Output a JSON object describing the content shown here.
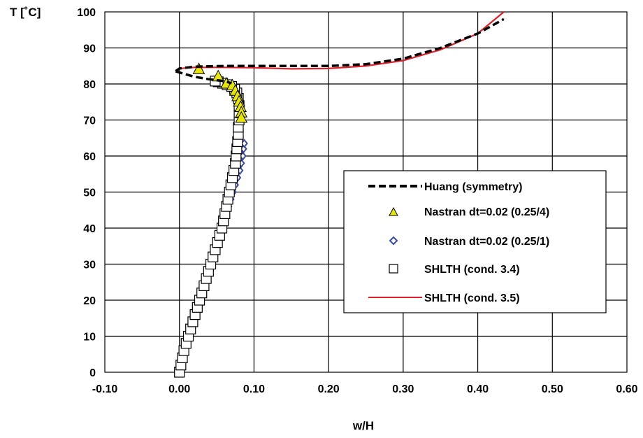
{
  "chart_data": {
    "type": "line",
    "title": "",
    "xlabel": "w/H",
    "ylabel": "T [˚C]",
    "xlim": [
      -0.1,
      0.6
    ],
    "ylim": [
      0,
      100
    ],
    "x_ticks": [
      "-0.10",
      "0.00",
      "0.10",
      "0.20",
      "0.30",
      "0.40",
      "0.50",
      "0.60"
    ],
    "y_ticks": [
      "0",
      "10",
      "20",
      "30",
      "40",
      "50",
      "60",
      "70",
      "80",
      "90",
      "100"
    ],
    "grid": true,
    "legend_position": "right-middle",
    "series": [
      {
        "name": "Huang (symmetry)",
        "style": "dashed-line",
        "color": "#000000",
        "segments": [
          [
            [
              -0.005,
              83.5
            ],
            [
              0.0,
              84.3
            ],
            [
              0.02,
              84.8
            ],
            [
              0.06,
              85.0
            ],
            [
              0.1,
              85.0
            ],
            [
              0.15,
              85.0
            ],
            [
              0.2,
              85.0
            ],
            [
              0.25,
              85.5
            ],
            [
              0.3,
              87.0
            ],
            [
              0.35,
              90.0
            ],
            [
              0.4,
              94.0
            ],
            [
              0.435,
              98.0
            ]
          ],
          [
            [
              -0.005,
              83.5
            ],
            [
              0.02,
              82.0
            ],
            [
              0.04,
              81.3
            ],
            [
              0.06,
              80.8
            ],
            [
              0.07,
              80.2
            ]
          ]
        ]
      },
      {
        "name": "Nastran dt=0.02 (0.25/4)",
        "style": "triangle-markers",
        "color": "#e6e600",
        "points": [
          [
            0.026,
            84.0
          ],
          [
            0.052,
            82.0
          ],
          [
            0.063,
            80.0
          ],
          [
            0.071,
            79.5
          ],
          [
            0.075,
            78.0
          ],
          [
            0.078,
            76.5
          ],
          [
            0.08,
            75.0
          ],
          [
            0.082,
            73.5
          ],
          [
            0.083,
            72.0
          ],
          [
            0.083,
            70.5
          ]
        ]
      },
      {
        "name": "Nastran dt=0.02 (0.25/1)",
        "style": "diamond-markers",
        "color": "#3a4aa0",
        "points": [
          [
            -0.002,
            0.5
          ],
          [
            0.0,
            2.0
          ],
          [
            0.003,
            4.0
          ],
          [
            0.006,
            6.0
          ],
          [
            0.009,
            8.0
          ],
          [
            0.012,
            10.0
          ],
          [
            0.015,
            12.0
          ],
          [
            0.018,
            14.0
          ],
          [
            0.021,
            16.0
          ],
          [
            0.024,
            18.0
          ],
          [
            0.027,
            20.0
          ],
          [
            0.03,
            22.0
          ],
          [
            0.033,
            24.0
          ],
          [
            0.036,
            26.0
          ],
          [
            0.039,
            28.0
          ],
          [
            0.042,
            30.0
          ],
          [
            0.045,
            32.0
          ],
          [
            0.048,
            34.0
          ],
          [
            0.051,
            36.0
          ],
          [
            0.054,
            38.0
          ],
          [
            0.057,
            40.0
          ],
          [
            0.06,
            42.0
          ],
          [
            0.063,
            44.0
          ],
          [
            0.066,
            46.0
          ],
          [
            0.069,
            48.0
          ],
          [
            0.072,
            50.0
          ],
          [
            0.075,
            52.0
          ],
          [
            0.078,
            54.0
          ],
          [
            0.081,
            56.0
          ],
          [
            0.083,
            58.0
          ],
          [
            0.085,
            60.0
          ],
          [
            0.086,
            62.0
          ],
          [
            0.087,
            63.5
          ]
        ]
      },
      {
        "name": "SHLTH (cond. 3.4)",
        "style": "square-markers",
        "color": "#000000",
        "points": [
          [
            0.0,
            0.0
          ],
          [
            0.002,
            2.0
          ],
          [
            0.004,
            4.0
          ],
          [
            0.006,
            6.0
          ],
          [
            0.009,
            8.0
          ],
          [
            0.012,
            10.0
          ],
          [
            0.015,
            12.0
          ],
          [
            0.018,
            14.0
          ],
          [
            0.021,
            16.0
          ],
          [
            0.024,
            18.0
          ],
          [
            0.027,
            20.0
          ],
          [
            0.03,
            22.0
          ],
          [
            0.033,
            24.0
          ],
          [
            0.036,
            26.0
          ],
          [
            0.039,
            28.0
          ],
          [
            0.042,
            30.0
          ],
          [
            0.045,
            32.0
          ],
          [
            0.048,
            34.0
          ],
          [
            0.051,
            36.0
          ],
          [
            0.054,
            38.0
          ],
          [
            0.057,
            40.0
          ],
          [
            0.059,
            42.0
          ],
          [
            0.061,
            44.0
          ],
          [
            0.063,
            46.0
          ],
          [
            0.065,
            48.0
          ],
          [
            0.067,
            50.0
          ],
          [
            0.069,
            52.0
          ],
          [
            0.071,
            54.0
          ],
          [
            0.073,
            56.0
          ],
          [
            0.075,
            58.0
          ],
          [
            0.076,
            60.0
          ],
          [
            0.077,
            62.0
          ],
          [
            0.078,
            64.0
          ],
          [
            0.079,
            66.0
          ],
          [
            0.079,
            68.0
          ],
          [
            0.08,
            70.0
          ],
          [
            0.08,
            72.0
          ],
          [
            0.08,
            74.0
          ],
          [
            0.079,
            76.0
          ],
          [
            0.077,
            77.5
          ],
          [
            0.074,
            78.5
          ],
          [
            0.07,
            79.3
          ],
          [
            0.064,
            79.8
          ],
          [
            0.058,
            80.2
          ],
          [
            0.052,
            80.6
          ],
          [
            0.048,
            80.8
          ]
        ]
      },
      {
        "name": "SHLTH (cond. 3.5)",
        "style": "solid-line",
        "color": "#e0202a",
        "points": [
          [
            -0.005,
            83.8
          ],
          [
            0.0,
            84.3
          ],
          [
            0.02,
            84.6
          ],
          [
            0.06,
            84.6
          ],
          [
            0.1,
            84.5
          ],
          [
            0.15,
            84.2
          ],
          [
            0.2,
            84.3
          ],
          [
            0.25,
            85.0
          ],
          [
            0.3,
            86.5
          ],
          [
            0.35,
            89.5
          ],
          [
            0.4,
            94.0
          ],
          [
            0.435,
            100.0
          ]
        ]
      }
    ]
  }
}
